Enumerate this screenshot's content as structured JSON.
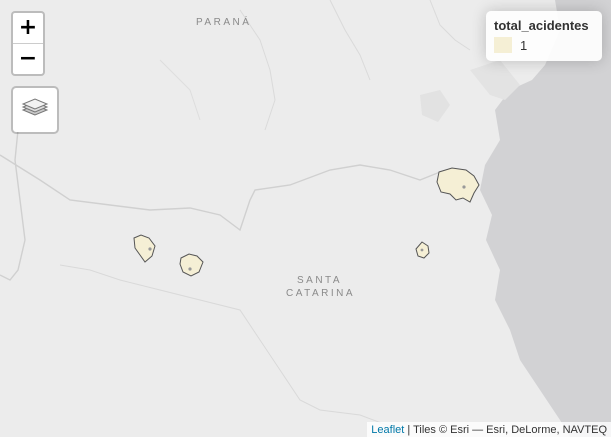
{
  "map": {
    "zoom_in_label": "+",
    "zoom_out_label": "−",
    "layers_icon": "layers-icon",
    "place_labels": {
      "parana": "PARANÁ",
      "santa": "SANTA",
      "catarina": "CATARINA"
    },
    "legend": {
      "title": "total_acidentes",
      "items": [
        {
          "label": "1",
          "color": "#f5efd5"
        }
      ]
    },
    "attribution": {
      "link_text": "Leaflet",
      "text": " | Tiles © Esri — Esri, DeLorme, NAVTEQ"
    },
    "colors": {
      "land": "#ececec",
      "ocean": "#d2d2d4",
      "border": "#d6d6d6",
      "polygon_fill": "#f5efd5",
      "polygon_stroke": "#555555"
    }
  }
}
